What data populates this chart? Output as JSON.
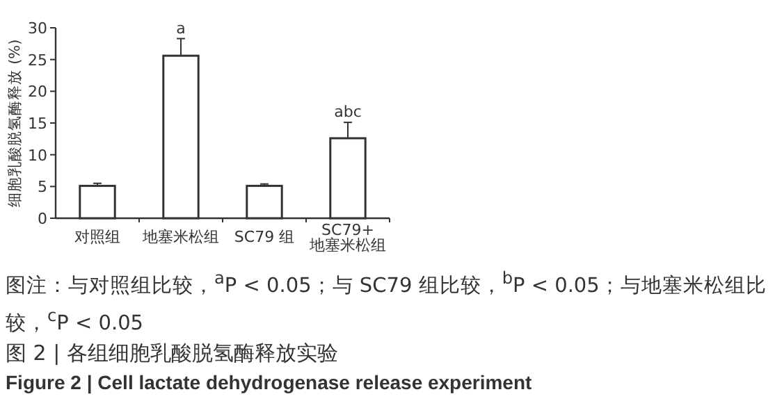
{
  "chart_data": {
    "type": "bar",
    "ylabel": "细胞乳酸脱氢酶释放 (%)",
    "categories": [
      "对照组",
      "地塞米松组",
      "SC79 组",
      "SC79+\n地塞米松组"
    ],
    "values": [
      5.1,
      25.6,
      5.1,
      12.6
    ],
    "errors": [
      0.4,
      2.7,
      0.3,
      2.5
    ],
    "color": "#ffffff",
    "ylim": [
      0,
      30
    ],
    "yticks": [
      0,
      5,
      10,
      15,
      20,
      25,
      30
    ],
    "annotations": [
      {
        "text": "a",
        "x": "地塞米松组",
        "y": 28.3
      },
      {
        "text": "abc",
        "x": "SC79+\n地塞米松组",
        "y": 15.1
      },
      "图注：与对照组比较，$^{a}$P < 0.05；与 SC79 组比较，$^{b}$P < 0.05；与地塞米松组比较，$^{c}$P < 0.05"
    ],
    "title": "图 2 | 各组细胞乳酸脱氢酶释放实验",
    "subtitle": "Figure 2 | Cell lactate dehydrogenase release experiment"
  }
}
